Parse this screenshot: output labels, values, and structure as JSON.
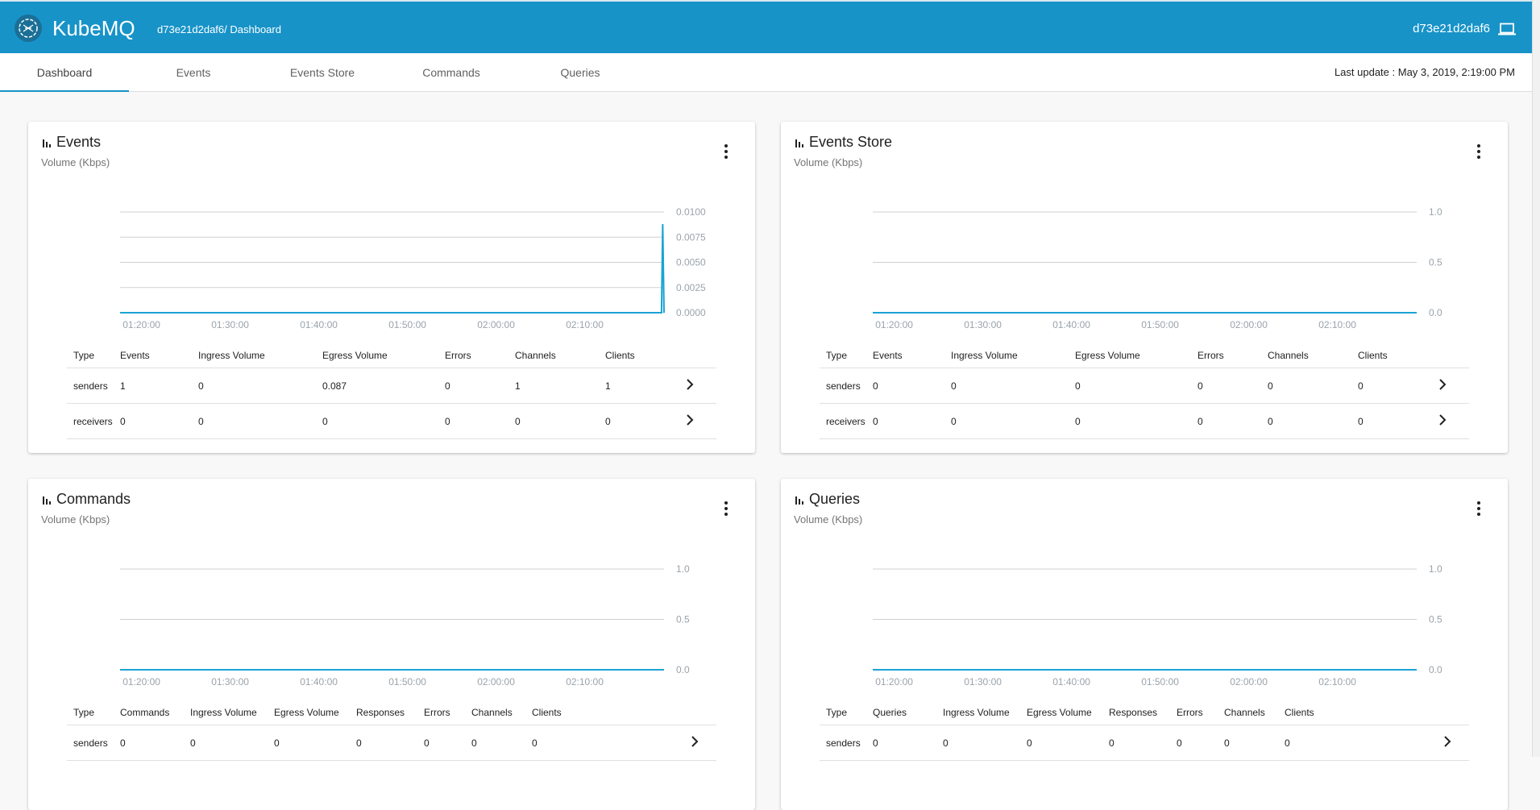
{
  "header": {
    "brand": "KubeMQ",
    "breadcrumb": "d73e21d2daf6/ Dashboard",
    "host_id": "d73e21d2daf6",
    "logo_icon": "kubemq-logo",
    "host_icon": "laptop-icon",
    "color": "#1793c8"
  },
  "tabs": [
    {
      "label": "Dashboard",
      "active": true
    },
    {
      "label": "Events"
    },
    {
      "label": "Events Store"
    },
    {
      "label": "Commands"
    },
    {
      "label": "Queries"
    }
  ],
  "last_update": "Last update : May 3, 2019, 2:19:00 PM",
  "cards": [
    {
      "title": "Events",
      "subtitle": "Volume (Kbps)",
      "columns": [
        "Type",
        "Events",
        "Ingress Volume",
        "Egress Volume",
        "Errors",
        "Channels",
        "Clients"
      ],
      "rows": [
        [
          "senders",
          "1",
          "0",
          "0.087",
          "0",
          "1",
          "1"
        ],
        [
          "receivers",
          "0",
          "0",
          "0",
          "0",
          "0",
          "0"
        ]
      ]
    },
    {
      "title": "Events Store",
      "subtitle": "Volume (Kbps)",
      "columns": [
        "Type",
        "Events",
        "Ingress Volume",
        "Egress Volume",
        "Errors",
        "Channels",
        "Clients"
      ],
      "rows": [
        [
          "senders",
          "0",
          "0",
          "0",
          "0",
          "0",
          "0"
        ],
        [
          "receivers",
          "0",
          "0",
          "0",
          "0",
          "0",
          "0"
        ]
      ]
    },
    {
      "title": "Commands",
      "subtitle": "Volume (Kbps)",
      "columns": [
        "Type",
        "Commands",
        "Ingress Volume",
        "Egress Volume",
        "Responses",
        "Errors",
        "Channels",
        "Clients"
      ],
      "rows": [
        [
          "senders",
          "0",
          "0",
          "0",
          "0",
          "0",
          "0",
          "0"
        ]
      ]
    },
    {
      "title": "Queries",
      "subtitle": "Volume (Kbps)",
      "columns": [
        "Type",
        "Queries",
        "Ingress Volume",
        "Egress Volume",
        "Responses",
        "Errors",
        "Channels",
        "Clients"
      ],
      "rows": [
        [
          "senders",
          "0",
          "0",
          "0",
          "0",
          "0",
          "0",
          "0"
        ]
      ]
    }
  ],
  "chart_data": [
    {
      "type": "line",
      "title": "Events",
      "xlim": [
        "01:17:35",
        "02:18:57"
      ],
      "ylim": [
        0,
        0.01
      ],
      "xticks": [
        "01:20:00",
        "01:30:00",
        "01:40:00",
        "01:50:00",
        "02:00:00",
        "02:10:00"
      ],
      "yticks": [
        "0.0000",
        "0.0025",
        "0.0050",
        "0.0075",
        "0.0100"
      ],
      "grid": true,
      "color": "#1aa3d4",
      "series": [
        {
          "x": [
            "01:17:35",
            "02:18:40",
            "02:18:48",
            "02:18:57"
          ],
          "y": [
            0,
            0,
            0.0088,
            0
          ]
        }
      ]
    },
    {
      "type": "line",
      "title": "Events Store",
      "xlim": [
        "01:17:35",
        "02:18:57"
      ],
      "ylim": [
        0,
        1
      ],
      "xticks": [
        "01:20:00",
        "01:30:00",
        "01:40:00",
        "01:50:00",
        "02:00:00",
        "02:10:00"
      ],
      "yticks": [
        "0.0",
        "0.5",
        "1.0"
      ],
      "grid": true,
      "color": "#1aa3d4",
      "series": [
        {
          "x": [
            "01:17:35",
            "02:18:57"
          ],
          "y": [
            0,
            0
          ]
        }
      ]
    },
    {
      "type": "line",
      "title": "Commands",
      "xlim": [
        "01:17:35",
        "02:18:57"
      ],
      "ylim": [
        0,
        1
      ],
      "xticks": [
        "01:20:00",
        "01:30:00",
        "01:40:00",
        "01:50:00",
        "02:00:00",
        "02:10:00"
      ],
      "yticks": [
        "0.0",
        "0.5",
        "1.0"
      ],
      "grid": true,
      "color": "#1aa3d4",
      "series": [
        {
          "x": [
            "01:17:35",
            "02:18:57"
          ],
          "y": [
            0,
            0
          ]
        }
      ]
    },
    {
      "type": "line",
      "title": "Queries",
      "xlim": [
        "01:17:35",
        "02:18:57"
      ],
      "ylim": [
        0,
        1
      ],
      "xticks": [
        "01:20:00",
        "01:30:00",
        "01:40:00",
        "01:50:00",
        "02:00:00",
        "02:10:00"
      ],
      "yticks": [
        "0.0",
        "0.5",
        "1.0"
      ],
      "grid": true,
      "color": "#1aa3d4",
      "series": [
        {
          "x": [
            "01:17:35",
            "02:18:57"
          ],
          "y": [
            0,
            0
          ]
        }
      ]
    }
  ]
}
